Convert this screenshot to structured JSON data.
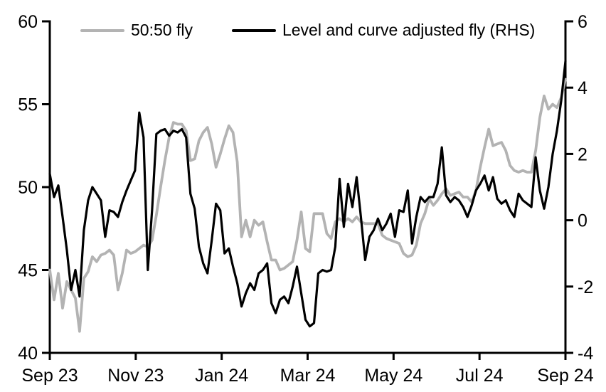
{
  "figure": {
    "background": "#ffffff",
    "text_color": "#000000"
  },
  "legend": {
    "position": "top",
    "items": [
      {
        "label": "50:50 fly",
        "color": "#b3b3b3"
      },
      {
        "label": "Level and curve adjusted fly (RHS)",
        "color": "#000000"
      }
    ]
  },
  "chart_data": {
    "type": "line",
    "title": "",
    "grid": false,
    "legend_position": "top",
    "x_domain_months": [
      0,
      12
    ],
    "x_tick_positions_months": [
      0,
      2,
      4,
      6,
      8,
      10,
      12
    ],
    "x_tick_labels": [
      "Sep 23",
      "Nov 23",
      "Jan 24",
      "Mar 24",
      "May 24",
      "Jul 24",
      "Sep 24"
    ],
    "left_axis": {
      "range": [
        40,
        60
      ],
      "ticks": [
        40,
        45,
        50,
        55,
        60
      ]
    },
    "right_axis": {
      "range": [
        -4,
        6
      ],
      "ticks": [
        -4,
        -2,
        0,
        2,
        4,
        6
      ]
    },
    "axis_color": "#000000",
    "series": [
      {
        "id": "fifty-fifty-fly",
        "name": "50:50 fly",
        "axis": "left",
        "color": "#b3b3b3",
        "stroke_width": 3.8,
        "values": [
          45.0,
          43.2,
          44.8,
          42.7,
          44.3,
          43.8,
          43.3,
          41.3,
          44.5,
          44.9,
          45.8,
          45.5,
          45.9,
          46.0,
          46.2,
          45.9,
          43.8,
          44.8,
          46.2,
          46.0,
          46.1,
          46.3,
          46.5,
          46.4,
          46.8,
          48.3,
          50.0,
          51.6,
          53.0,
          53.9,
          53.8,
          53.8,
          53.4,
          51.6,
          51.7,
          52.8,
          53.3,
          53.6,
          52.6,
          51.2,
          52.0,
          52.9,
          53.7,
          53.3,
          51.5,
          47.0,
          48.0,
          47.0,
          48.0,
          47.7,
          47.9,
          46.7,
          45.6,
          45.6,
          45.0,
          45.1,
          45.3,
          45.5,
          46.8,
          48.5,
          46.3,
          46.1,
          48.4,
          48.4,
          48.4,
          47.2,
          46.9,
          47.9,
          48.1,
          47.9,
          48.1,
          47.9,
          48.2,
          47.9,
          47.8,
          47.8,
          47.8,
          47.8,
          47.1,
          46.9,
          46.8,
          46.7,
          46.6,
          46.0,
          45.8,
          45.9,
          46.5,
          47.8,
          48.4,
          49.3,
          48.9,
          49.2,
          49.6,
          49.9,
          49.5,
          49.6,
          49.7,
          49.4,
          49.4,
          49.1,
          49.8,
          51.2,
          52.4,
          53.5,
          52.5,
          52.6,
          52.7,
          52.2,
          51.3,
          51.0,
          50.9,
          51.0,
          50.9,
          50.9,
          52.2,
          54.2,
          55.5,
          54.7,
          55.0,
          54.8,
          55.4,
          56.5
        ]
      },
      {
        "id": "level-curve-adjusted-fly",
        "name": "Level and curve adjusted fly (RHS)",
        "axis": "right",
        "color": "#000000",
        "stroke_width": 3.2,
        "values": [
          1.4,
          0.7,
          1.05,
          0.1,
          -0.9,
          -2.1,
          -1.5,
          -2.3,
          -0.3,
          0.6,
          1.0,
          0.8,
          0.6,
          -0.5,
          0.3,
          0.25,
          0.1,
          0.55,
          0.9,
          1.2,
          1.5,
          3.25,
          2.5,
          -1.5,
          0.3,
          2.6,
          2.7,
          2.75,
          2.55,
          2.7,
          2.65,
          2.75,
          2.5,
          0.8,
          0.35,
          -0.8,
          -1.3,
          -1.6,
          -0.6,
          0.5,
          0.3,
          -1.0,
          -0.85,
          -1.4,
          -1.9,
          -2.6,
          -2.2,
          -1.9,
          -2.1,
          -1.6,
          -1.5,
          -1.3,
          -2.5,
          -2.8,
          -2.4,
          -2.3,
          -2.5,
          -2.0,
          -1.4,
          -2.2,
          -3.0,
          -3.2,
          -3.1,
          -1.6,
          -1.5,
          -1.55,
          -1.5,
          -0.8,
          1.25,
          -0.2,
          1.1,
          0.4,
          1.3,
          0.1,
          -1.2,
          -0.5,
          -0.3,
          0.05,
          -0.3,
          -0.1,
          0.2,
          -0.5,
          0.3,
          0.25,
          0.9,
          -0.7,
          0.1,
          0.7,
          0.55,
          0.7,
          0.7,
          1.1,
          2.2,
          0.75,
          0.55,
          0.7,
          0.6,
          0.4,
          0.1,
          0.45,
          0.9,
          1.1,
          1.35,
          0.9,
          1.3,
          0.65,
          0.5,
          0.6,
          0.3,
          0.1,
          0.8,
          0.6,
          0.5,
          0.4,
          1.9,
          0.9,
          0.35,
          1.0,
          2.0,
          2.7,
          3.6,
          4.8
        ]
      }
    ]
  }
}
